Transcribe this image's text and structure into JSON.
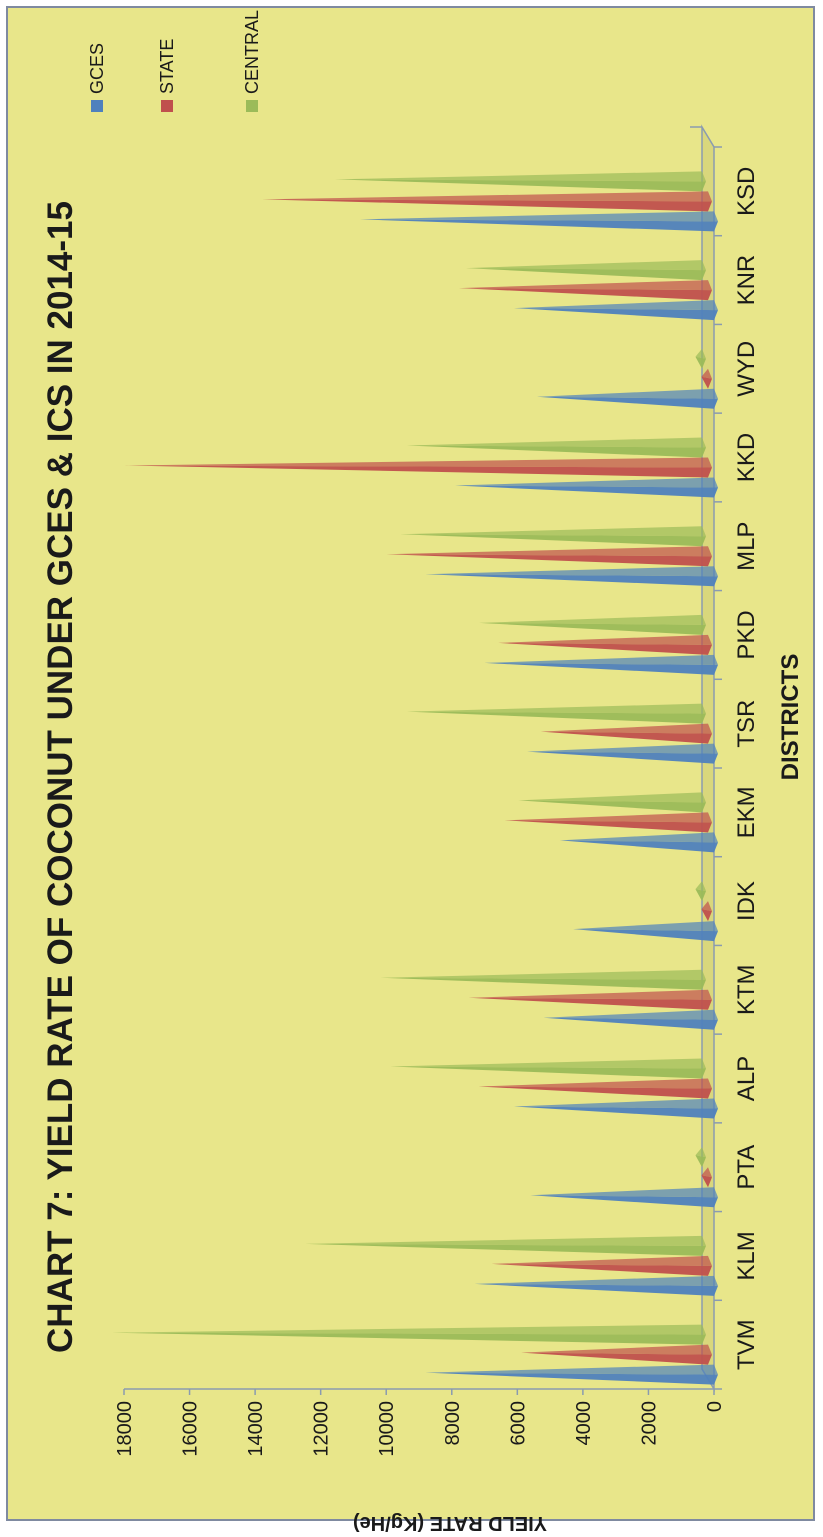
{
  "chart_data": {
    "type": "bar",
    "title": "CHART 7: YIELD RATE OF COCONUT UNDER GCES & ICS IN 2014-15",
    "xlabel": "DISTRICTS",
    "ylabel": "YIELD RATE (Kg/He)",
    "ylim": [
      0,
      18000
    ],
    "yticks": [
      "0",
      "2000",
      "4000",
      "6000",
      "8000",
      "10000",
      "12000",
      "14000",
      "16000",
      "18000"
    ],
    "categories": [
      "TVM",
      "KLM",
      "PTA",
      "ALP",
      "KTM",
      "IDK",
      "EKM",
      "TSR",
      "PKD",
      "MLP",
      "KKD",
      "WYD",
      "KNR",
      "KSD"
    ],
    "series": [
      {
        "name": "GCES",
        "color": "#4f81bd",
        "values": [
          8800,
          7300,
          5600,
          6100,
          5200,
          4300,
          4700,
          5700,
          7000,
          8800,
          7900,
          5400,
          6100,
          10800
        ]
      },
      {
        "name": "STATE",
        "color": "#c0504d",
        "values": [
          5700,
          6600,
          200,
          7000,
          7300,
          200,
          6200,
          5100,
          6400,
          9800,
          17800,
          200,
          7600,
          13600
        ]
      },
      {
        "name": "CENTRAL",
        "color": "#9bbb59",
        "values": [
          18000,
          12100,
          200,
          9500,
          9800,
          200,
          5600,
          9000,
          6800,
          9200,
          9000,
          200,
          7200,
          11200
        ]
      }
    ],
    "legend_position": "top-right",
    "grid": false
  }
}
